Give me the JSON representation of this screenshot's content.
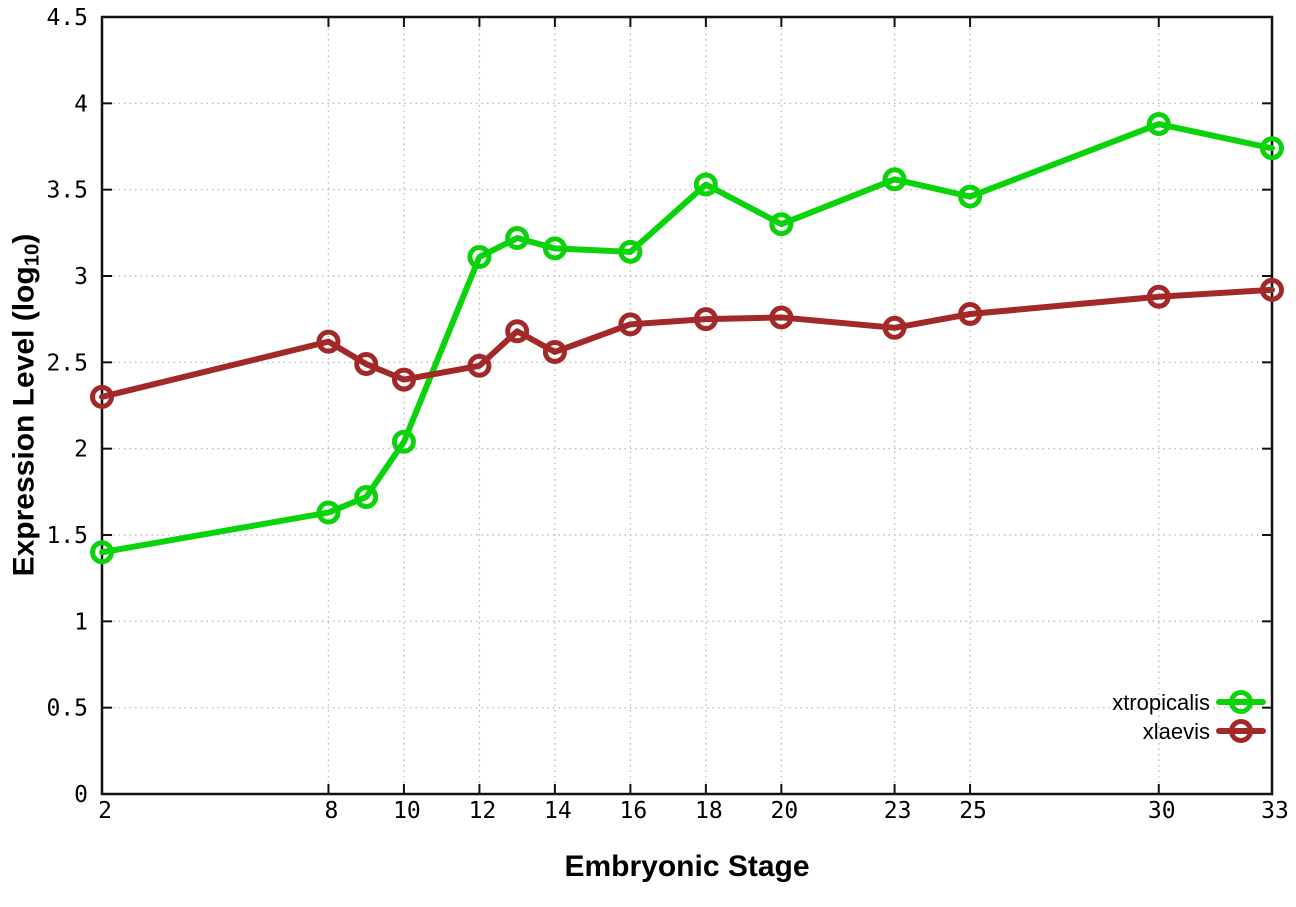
{
  "figure": {
    "background": "#ffffff",
    "border_color": "#111111",
    "grid_color": "#bdbdbd",
    "tick_color": "#111111",
    "text_color": "#000000"
  },
  "chart_data": {
    "type": "line",
    "title": "",
    "xlabel": "Embryonic Stage",
    "ylabel": "Expression Level (log10)",
    "ylabel_prefix": "Expression Level (log",
    "ylabel_sub": "10",
    "ylabel_suffix": ")",
    "xlim": [
      2,
      33
    ],
    "ylim": [
      0,
      4.5
    ],
    "grid": true,
    "legend_position": "bottom-right",
    "x": [
      2,
      8,
      9,
      10,
      12,
      13,
      14,
      16,
      18,
      20,
      23,
      25,
      30,
      33
    ],
    "xticks": [
      2,
      8,
      10,
      12,
      14,
      16,
      18,
      20,
      23,
      25,
      30,
      33
    ],
    "xtick_labels": [
      "2",
      "8",
      "10",
      "12",
      "14",
      "16",
      "18",
      "20",
      "23",
      "25",
      "30",
      "33"
    ],
    "yticks": [
      0,
      0.5,
      1,
      1.5,
      2,
      2.5,
      3,
      3.5,
      4,
      4.5
    ],
    "ytick_labels": [
      "0",
      "0.5",
      "1",
      "1.5",
      "2",
      "2.5",
      "3",
      "3.5",
      "4",
      "4.5"
    ],
    "series": [
      {
        "name": "xtropicalis",
        "color": "#0bd30b",
        "values": [
          1.4,
          1.63,
          1.72,
          2.04,
          3.11,
          3.22,
          3.16,
          3.14,
          3.53,
          3.3,
          3.56,
          3.46,
          3.88,
          3.74
        ]
      },
      {
        "name": "xlaevis",
        "color": "#a32929",
        "values": [
          2.3,
          2.62,
          2.49,
          2.4,
          2.48,
          2.68,
          2.56,
          2.72,
          2.75,
          2.76,
          2.7,
          2.78,
          2.88,
          2.92
        ]
      }
    ]
  }
}
